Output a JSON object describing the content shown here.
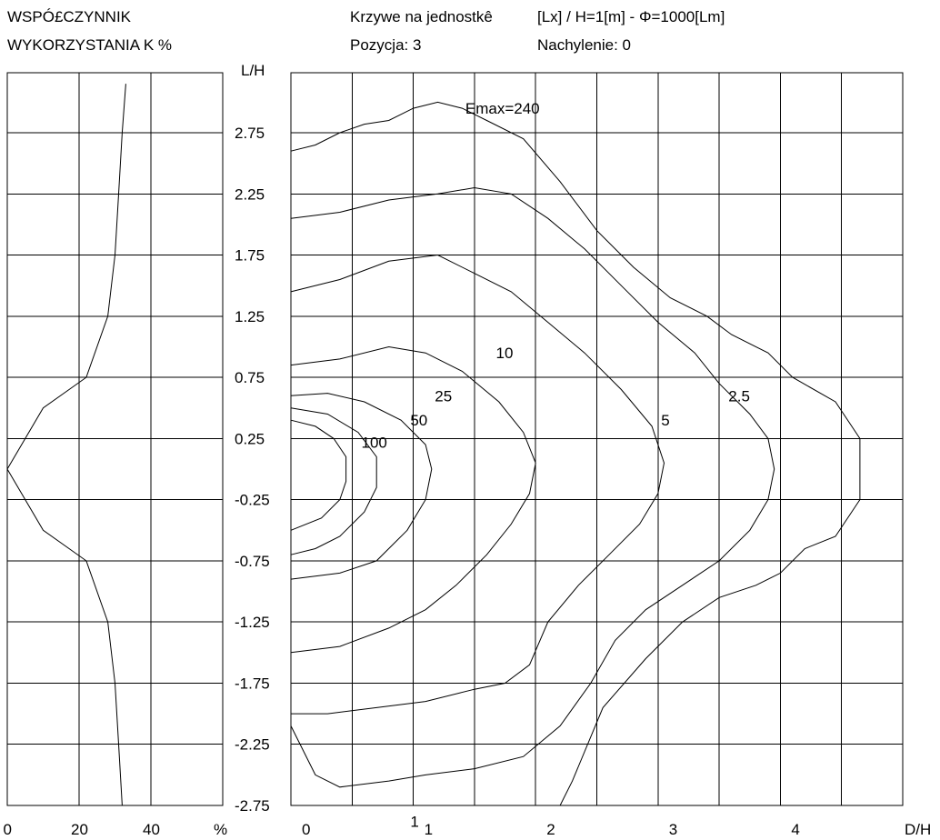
{
  "header": {
    "left_title_1": "WSPÓ£CZYNNIK",
    "left_title_2": "WYKORZYSTANIA K %",
    "right_title_1a": "Krzywe na jednostkê",
    "right_title_1b": "[Lx] / H=1[m] - Φ=1000[Lm]",
    "right_title_2a": "Pozycja: 3",
    "right_title_2b": "Nachylenie: 0"
  },
  "chart_data": [
    {
      "type": "line",
      "title": "WSPÓ£CZYNNIK WYKORZYSTANIA K %",
      "xlabel": "%",
      "ylabel": "L/H",
      "xlim": [
        0,
        60
      ],
      "ylim": [
        -2.75,
        3.15
      ],
      "x_ticks": [
        "0",
        "20",
        "40",
        "%"
      ],
      "y_ticks": [
        "2.75",
        "2.25",
        "1.75",
        "1.25",
        "0.75",
        "0.25",
        "-0.25",
        "-0.75",
        "-1.25",
        "-1.75",
        "-2.25",
        "-2.75"
      ],
      "series": [
        {
          "points": [
            [
              0,
              0
            ],
            [
              10,
              0.5
            ],
            [
              22,
              0.75
            ],
            [
              28,
              1.25
            ],
            [
              30,
              1.75
            ],
            [
              31,
              2.25
            ],
            [
              32,
              2.75
            ],
            [
              33,
              3.15
            ],
            [
              10,
              -0.5
            ],
            [
              22,
              -0.75
            ],
            [
              28,
              -1.25
            ],
            [
              30,
              -1.75
            ],
            [
              31,
              -2.25
            ],
            [
              32,
              -2.75
            ]
          ]
        }
      ]
    },
    {
      "type": "line",
      "title": "Krzywe na jednostkê [Lx] / H=1[m] - Φ=1000[Lm]",
      "xlabel": "D/H",
      "ylabel": "L/H",
      "xlim": [
        0,
        5
      ],
      "ylim": [
        -2.75,
        3.15
      ],
      "x_ticks": [
        "0",
        "1",
        "2",
        "3",
        "4",
        "D/H"
      ],
      "annotations": [
        {
          "text": "Emax=240",
          "x": 1.5,
          "y": 2.95
        },
        {
          "text": "10",
          "x": 1.75,
          "y": 0.95
        },
        {
          "text": "25",
          "x": 1.25,
          "y": 0.6
        },
        {
          "text": "50",
          "x": 1.05,
          "y": 0.4
        },
        {
          "text": "100",
          "x": 0.65,
          "y": 0.22
        },
        {
          "text": "5",
          "x": 3.1,
          "y": 0.4
        },
        {
          "text": "2.5",
          "x": 3.65,
          "y": 0.6
        },
        {
          "text": "1",
          "x": 1.05,
          "y": -2.88
        }
      ],
      "series": [
        {
          "name": "1",
          "points": [
            [
              0,
              2.6
            ],
            [
              0.2,
              2.65
            ],
            [
              0.4,
              2.75
            ],
            [
              0.6,
              2.82
            ],
            [
              0.8,
              2.85
            ],
            [
              1,
              2.95
            ],
            [
              1.2,
              3.0
            ],
            [
              1.4,
              2.95
            ],
            [
              1.6,
              2.85
            ],
            [
              1.9,
              2.7
            ],
            [
              2.2,
              2.35
            ],
            [
              2.5,
              1.95
            ],
            [
              2.8,
              1.65
            ],
            [
              3.1,
              1.4
            ],
            [
              3.4,
              1.25
            ],
            [
              3.6,
              1.1
            ],
            [
              3.9,
              0.95
            ],
            [
              4.1,
              0.75
            ],
            [
              4.45,
              0.55
            ],
            [
              4.65,
              0.25
            ],
            [
              4.65,
              -0.25
            ],
            [
              4.45,
              -0.55
            ],
            [
              4.2,
              -0.65
            ],
            [
              4.0,
              -0.85
            ],
            [
              3.8,
              -0.95
            ],
            [
              3.5,
              -1.05
            ],
            [
              3.2,
              -1.25
            ],
            [
              2.9,
              -1.55
            ],
            [
              2.55,
              -1.95
            ],
            [
              2.3,
              -2.55
            ],
            [
              2.2,
              -2.95
            ]
          ]
        },
        {
          "name": "2.5",
          "points": [
            [
              0,
              2.05
            ],
            [
              0.4,
              2.1
            ],
            [
              0.8,
              2.2
            ],
            [
              1.2,
              2.25
            ],
            [
              1.5,
              2.3
            ],
            [
              1.8,
              2.25
            ],
            [
              2.1,
              2.05
            ],
            [
              2.4,
              1.8
            ],
            [
              2.7,
              1.5
            ],
            [
              3.0,
              1.2
            ],
            [
              3.3,
              0.95
            ],
            [
              3.5,
              0.7
            ],
            [
              3.75,
              0.45
            ],
            [
              3.9,
              0.25
            ],
            [
              3.95,
              0.0
            ],
            [
              3.9,
              -0.25
            ],
            [
              3.75,
              -0.5
            ],
            [
              3.5,
              -0.75
            ],
            [
              3.2,
              -0.95
            ],
            [
              2.9,
              -1.15
            ],
            [
              2.65,
              -1.4
            ],
            [
              2.45,
              -1.75
            ],
            [
              2.2,
              -2.1
            ],
            [
              1.9,
              -2.35
            ],
            [
              1.5,
              -2.45
            ],
            [
              1.1,
              -2.5
            ],
            [
              0.8,
              -2.55
            ],
            [
              0.4,
              -2.6
            ],
            [
              0.2,
              -2.5
            ],
            [
              0,
              -2.1
            ]
          ]
        },
        {
          "name": "5",
          "points": [
            [
              0,
              1.45
            ],
            [
              0.4,
              1.55
            ],
            [
              0.8,
              1.7
            ],
            [
              1.2,
              1.75
            ],
            [
              1.5,
              1.6
            ],
            [
              1.8,
              1.45
            ],
            [
              2.1,
              1.2
            ],
            [
              2.4,
              0.95
            ],
            [
              2.7,
              0.65
            ],
            [
              2.95,
              0.35
            ],
            [
              3.05,
              0.05
            ],
            [
              3.0,
              -0.2
            ],
            [
              2.85,
              -0.45
            ],
            [
              2.6,
              -0.7
            ],
            [
              2.35,
              -0.95
            ],
            [
              2.1,
              -1.25
            ],
            [
              1.95,
              -1.6
            ],
            [
              1.75,
              -1.75
            ],
            [
              1.5,
              -1.8
            ],
            [
              1.1,
              -1.9
            ],
            [
              0.7,
              -1.95
            ],
            [
              0.3,
              -2.0
            ],
            [
              0,
              -2.0
            ]
          ]
        },
        {
          "name": "10",
          "points": [
            [
              0,
              0.85
            ],
            [
              0.4,
              0.9
            ],
            [
              0.8,
              1.0
            ],
            [
              1.1,
              0.95
            ],
            [
              1.4,
              0.8
            ],
            [
              1.7,
              0.55
            ],
            [
              1.9,
              0.3
            ],
            [
              2.0,
              0.05
            ],
            [
              1.95,
              -0.2
            ],
            [
              1.8,
              -0.45
            ],
            [
              1.6,
              -0.7
            ],
            [
              1.35,
              -0.95
            ],
            [
              1.1,
              -1.15
            ],
            [
              0.8,
              -1.3
            ],
            [
              0.4,
              -1.45
            ],
            [
              0,
              -1.5
            ]
          ]
        },
        {
          "name": "25",
          "points": [
            [
              0,
              0.6
            ],
            [
              0.3,
              0.62
            ],
            [
              0.6,
              0.55
            ],
            [
              0.9,
              0.4
            ],
            [
              1.1,
              0.2
            ],
            [
              1.15,
              0.0
            ],
            [
              1.1,
              -0.25
            ],
            [
              0.95,
              -0.5
            ],
            [
              0.7,
              -0.75
            ],
            [
              0.4,
              -0.85
            ],
            [
              0,
              -0.9
            ]
          ]
        },
        {
          "name": "50",
          "points": [
            [
              0,
              0.5
            ],
            [
              0.3,
              0.45
            ],
            [
              0.55,
              0.3
            ],
            [
              0.7,
              0.1
            ],
            [
              0.7,
              -0.15
            ],
            [
              0.6,
              -0.35
            ],
            [
              0.4,
              -0.55
            ],
            [
              0.2,
              -0.65
            ],
            [
              0,
              -0.7
            ]
          ]
        },
        {
          "name": "100",
          "points": [
            [
              0,
              0.4
            ],
            [
              0.2,
              0.35
            ],
            [
              0.35,
              0.25
            ],
            [
              0.45,
              0.1
            ],
            [
              0.45,
              -0.1
            ],
            [
              0.4,
              -0.25
            ],
            [
              0.25,
              -0.4
            ],
            [
              0,
              -0.5
            ]
          ]
        }
      ]
    }
  ]
}
